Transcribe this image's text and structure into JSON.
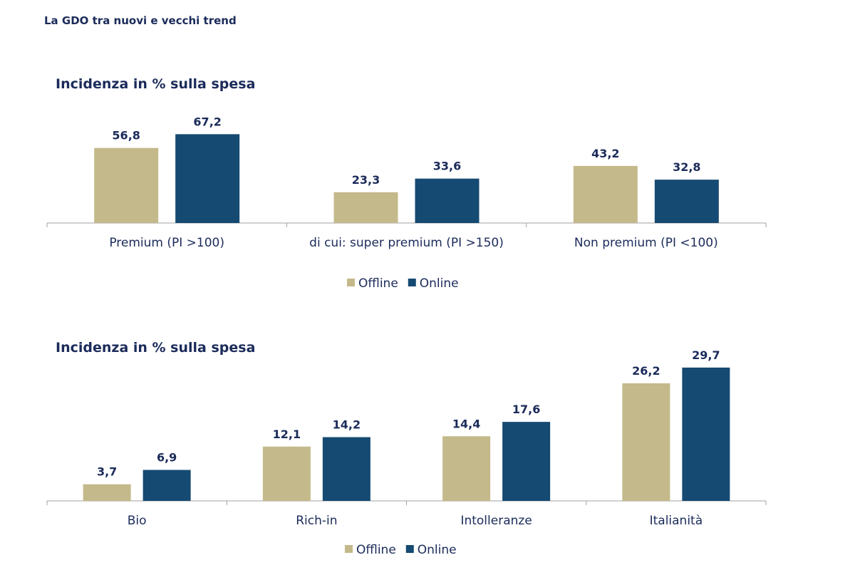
{
  "page_title": "La GDO tra nuovi e vecchi trend",
  "colors": {
    "offline": "#c4b98a",
    "online": "#154a72",
    "text": "#1b2b5a",
    "axis": "#a0a0a0"
  },
  "chart_data": [
    {
      "type": "bar",
      "title": "Incidenza in % sulla spesa",
      "categories": [
        "Premium (PI >100)",
        "di cui: super premium (PI >150)",
        "Non premium (PI <100)"
      ],
      "series": [
        {
          "name": "Offline",
          "values": [
            56.8,
            23.3,
            43.2
          ]
        },
        {
          "name": "Online",
          "values": [
            67.2,
            33.6,
            32.8
          ]
        }
      ],
      "data_labels": [
        [
          "56,8",
          "23,3",
          "43,2"
        ],
        [
          "67,2",
          "33,6",
          "32,8"
        ]
      ],
      "legend": "bottom",
      "grid": false
    },
    {
      "type": "bar",
      "title": "Incidenza in % sulla spesa",
      "categories": [
        "Bio",
        "Rich-in",
        "Intolleranze",
        "Italianità"
      ],
      "series": [
        {
          "name": "Offline",
          "values": [
            3.7,
            12.1,
            14.4,
            26.2
          ]
        },
        {
          "name": "Online",
          "values": [
            6.9,
            14.2,
            17.6,
            29.7
          ]
        }
      ],
      "data_labels": [
        [
          "3,7",
          "12,1",
          "14,4",
          "26,2"
        ],
        [
          "6,9",
          "14,2",
          "17,6",
          "29,7"
        ]
      ],
      "legend": "bottom",
      "grid": false
    }
  ]
}
